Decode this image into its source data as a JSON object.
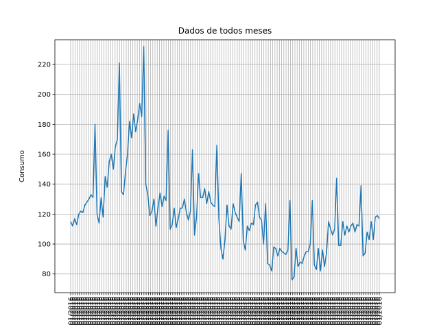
{
  "chart_data": {
    "type": "line",
    "title": "Dados de todos meses",
    "xlabel": "",
    "ylabel": "Consumo",
    "ylim": [
      67.5,
      236.5
    ],
    "yticks": [
      80,
      100,
      120,
      140,
      160,
      180,
      200,
      220
    ],
    "grid": true,
    "x_tick_label_text": "01/2016",
    "x_tick_label_count": 140,
    "series": [
      {
        "color": "#1f77b4",
        "values": [
          115,
          112,
          117,
          113,
          120,
          122,
          121,
          126,
          128,
          130,
          133,
          131,
          180,
          120,
          114,
          131,
          118,
          145,
          138,
          155,
          160,
          150,
          165,
          170,
          221,
          135,
          133,
          148,
          160,
          182,
          171,
          187,
          175,
          183,
          194,
          185,
          232,
          140,
          133,
          119,
          122,
          130,
          112,
          124,
          134,
          125,
          132,
          129,
          176,
          110,
          113,
          124,
          111,
          117,
          124,
          124,
          130,
          121,
          116,
          122,
          163,
          106,
          118,
          147,
          131,
          131,
          137,
          127,
          135,
          128,
          126,
          125,
          166,
          117,
          97,
          90,
          103,
          126,
          112,
          110,
          127,
          121,
          118,
          115,
          147,
          102,
          96,
          112,
          109,
          114,
          113,
          126,
          128,
          118,
          116,
          100,
          127,
          87,
          86,
          82,
          98,
          97,
          92,
          97,
          95,
          94,
          93,
          96,
          129,
          76,
          78,
          97,
          85,
          88,
          87,
          92,
          95,
          95,
          100,
          129,
          86,
          83,
          97,
          82,
          96,
          85,
          94,
          115,
          110,
          106,
          110,
          144,
          99,
          99,
          115,
          106,
          112,
          108,
          112,
          114,
          108,
          113,
          112,
          139,
          92,
          94,
          108,
          103,
          115,
          103,
          118,
          119,
          117
        ]
      }
    ]
  }
}
